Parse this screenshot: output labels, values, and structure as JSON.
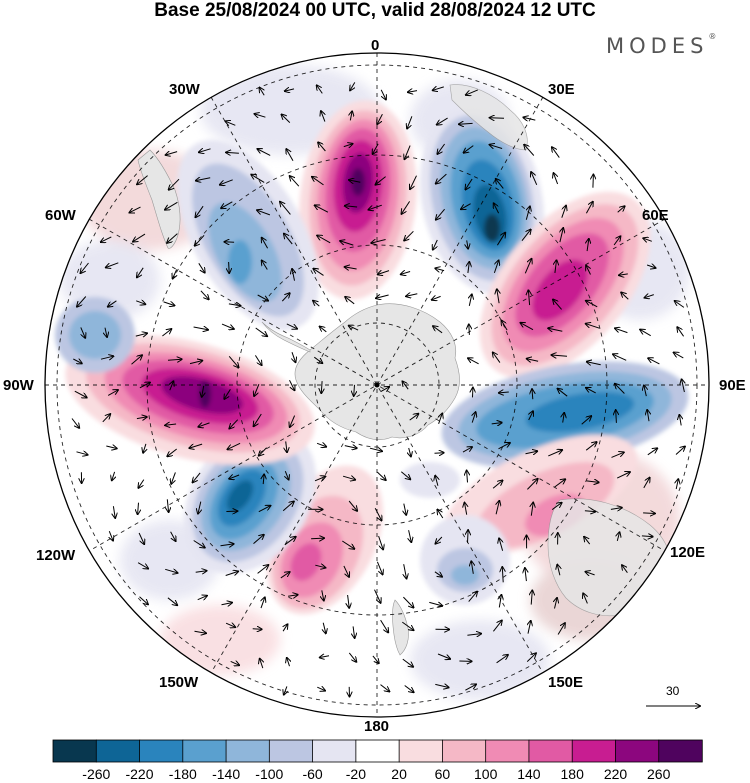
{
  "title": "Base 25/08/2024 00 UTC, valid 28/08/2024 12 UTC",
  "brand": "MODES",
  "brand_mark": "®",
  "longitude_labels": {
    "top": "0",
    "e30": "30E",
    "e60": "60E",
    "e90": "90E",
    "e120": "120E",
    "e150": "150E",
    "bottom": "180",
    "w150": "150W",
    "w120": "120W",
    "w90": "90W",
    "w60": "60W",
    "w30": "30W"
  },
  "reference_vector_label": "30",
  "colorbar": {
    "colors": [
      "#08374f",
      "#0e6596",
      "#2a84bd",
      "#5aa0cf",
      "#8fb6da",
      "#bcc6e2",
      "#e5e5f2",
      "#ffffff",
      "#f9dde0",
      "#f5b8c6",
      "#f08bb4",
      "#e15aa4",
      "#c81d91",
      "#8c067e",
      "#4f035e"
    ],
    "labels": [
      "-260",
      "-220",
      "-180",
      "-140",
      "-100",
      "-60",
      "-20",
      "20",
      "60",
      "100",
      "140",
      "180",
      "220",
      "260"
    ]
  },
  "map": {
    "projection": "south-polar-stereographic",
    "anomalies": [
      {
        "sign": "positive",
        "peak": 260,
        "location": "near 0 longitude, mid-latitude"
      },
      {
        "sign": "negative",
        "peak": -260,
        "location": "near 30E"
      },
      {
        "sign": "positive",
        "peak": 220,
        "location": "near 60E"
      },
      {
        "sign": "negative",
        "peak": -180,
        "location": "near 90E-100E"
      },
      {
        "sign": "positive",
        "peak": 100,
        "location": "near 120E-130E"
      },
      {
        "sign": "negative",
        "peak": -100,
        "location": "near 150E-160E"
      },
      {
        "sign": "positive",
        "peak": 140,
        "location": "near 160W"
      },
      {
        "sign": "negative",
        "peak": -220,
        "location": "near 120W"
      },
      {
        "sign": "positive",
        "peak": 260,
        "location": "near 90W"
      },
      {
        "sign": "negative",
        "peak": -140,
        "location": "near 60W"
      },
      {
        "sign": "negative",
        "peak": -100,
        "location": "near 75W outer"
      }
    ]
  }
}
